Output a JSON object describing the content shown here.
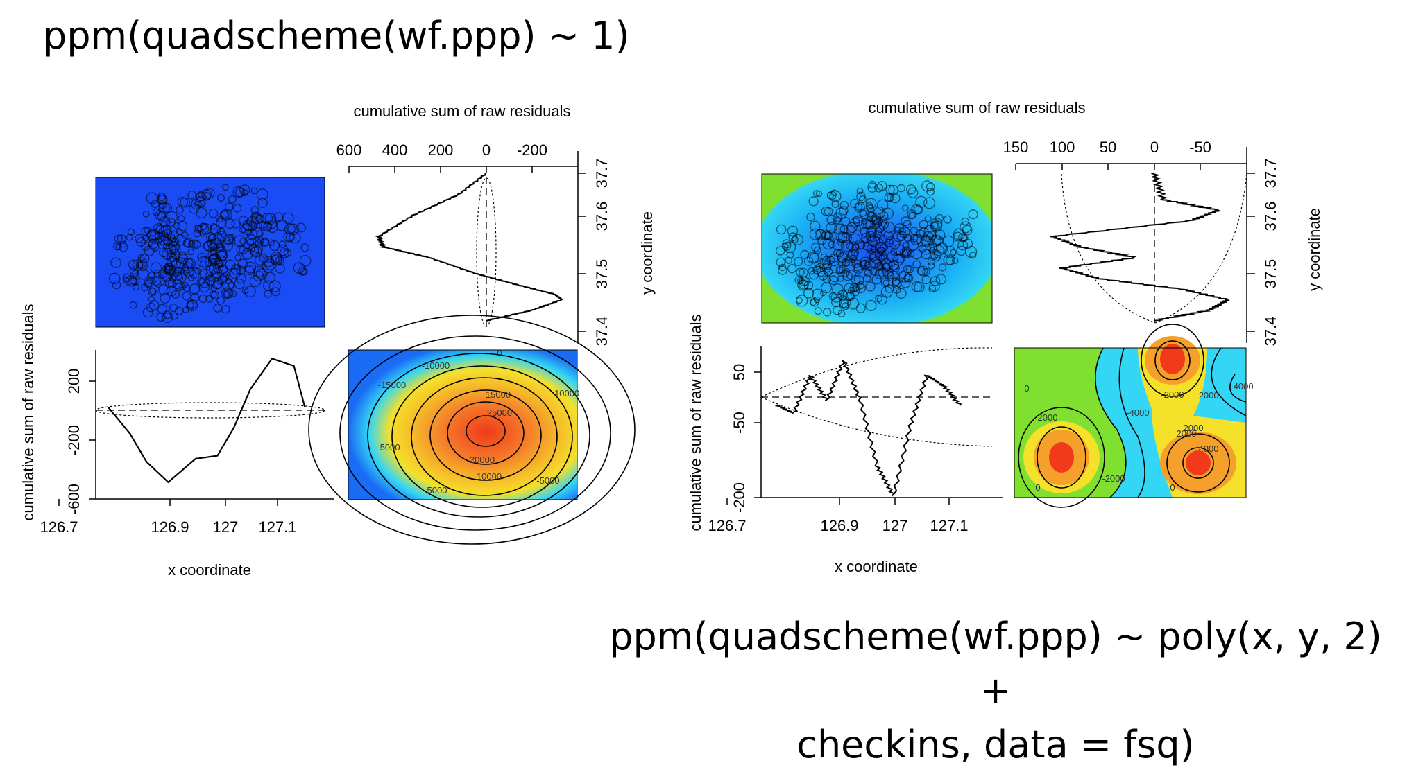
{
  "titles": {
    "left": "ppm(quadscheme(wf.ppp) ~ 1)",
    "right_line1": "ppm(quadscheme(wf.ppp) ~ poly(x, y, 2) +",
    "right_line2": "checkins, data = fsq)"
  },
  "colors": {
    "blue_field": "#1a4cf5",
    "cyan": "#33d6f5",
    "green": "#7fe030",
    "yellow": "#f5e02a",
    "orange": "#f5a02a",
    "red": "#f03a1a"
  },
  "chart_data": [
    {
      "type": "line",
      "panel": "left model",
      "top_plot": {
        "title": "cumulative sum of raw residuals",
        "x_ticks": [
          "600",
          "400",
          "200",
          "0",
          "-200"
        ],
        "y_ticks": [
          "37.4",
          "37.5",
          "37.6",
          "37.7"
        ],
        "ylabel": "y coordinate",
        "curve": [
          [
            0,
            37.7
          ],
          [
            120,
            37.66
          ],
          [
            320,
            37.62
          ],
          [
            470,
            37.58
          ],
          [
            450,
            37.56
          ],
          [
            250,
            37.54
          ],
          [
            50,
            37.51
          ],
          [
            -120,
            37.49
          ],
          [
            -300,
            37.47
          ],
          [
            -330,
            37.46
          ],
          [
            -200,
            37.44
          ],
          [
            0,
            37.42
          ]
        ]
      },
      "bottom_plot": {
        "ylabel": "cumulative sum of raw residuals",
        "y_ticks": [
          "200",
          "-200",
          "-600"
        ],
        "x_ticks": [
          "126.7",
          "126.9",
          "127",
          "127.1"
        ],
        "xlabel": "x coordinate",
        "curve": [
          [
            126.79,
            0
          ],
          [
            126.83,
            -180
          ],
          [
            126.86,
            -370
          ],
          [
            126.9,
            -510
          ],
          [
            126.95,
            -350
          ],
          [
            126.99,
            -330
          ],
          [
            127.02,
            -140
          ],
          [
            127.05,
            120
          ],
          [
            127.09,
            330
          ],
          [
            127.13,
            280
          ],
          [
            127.15,
            0
          ]
        ]
      },
      "contour_labels": [
        "0",
        "-15000",
        "-10000",
        "-5000",
        "-10000",
        "-5000",
        "5000",
        "10000",
        "15000",
        "20000",
        "25000"
      ]
    },
    {
      "type": "line",
      "panel": "right model",
      "top_plot": {
        "title": "cumulative sum of raw residuals",
        "x_ticks": [
          "150",
          "100",
          "50",
          "0",
          "-50"
        ],
        "y_ticks": [
          "37.4",
          "37.5",
          "37.6",
          "37.7"
        ],
        "ylabel": "y coordinate",
        "curve": [
          [
            0,
            37.7
          ],
          [
            -10,
            37.65
          ],
          [
            -70,
            37.63
          ],
          [
            -40,
            37.61
          ],
          [
            110,
            37.58
          ],
          [
            80,
            37.56
          ],
          [
            20,
            37.54
          ],
          [
            100,
            37.52
          ],
          [
            60,
            37.5
          ],
          [
            -30,
            37.48
          ],
          [
            -80,
            37.46
          ],
          [
            -60,
            37.44
          ],
          [
            0,
            37.42
          ]
        ]
      },
      "bottom_plot": {
        "ylabel": "cumulative sum of raw residuals",
        "y_ticks": [
          "50",
          "-50",
          "-200"
        ],
        "x_ticks": [
          "126.7",
          "126.9",
          "127",
          "127.1"
        ],
        "xlabel": "x coordinate",
        "curve": [
          [
            126.79,
            0
          ],
          [
            126.82,
            -15
          ],
          [
            126.85,
            60
          ],
          [
            126.88,
            10
          ],
          [
            126.91,
            90
          ],
          [
            126.94,
            10
          ],
          [
            126.97,
            -120
          ],
          [
            127.0,
            -180
          ],
          [
            127.03,
            -40
          ],
          [
            127.06,
            60
          ],
          [
            127.09,
            40
          ],
          [
            127.12,
            0
          ]
        ]
      },
      "contour_labels": [
        "2000",
        "-2000",
        "-4000",
        "-2000",
        "-2000",
        "-4000",
        "2000",
        "2000",
        "4000",
        "0",
        "0",
        "0"
      ]
    }
  ]
}
